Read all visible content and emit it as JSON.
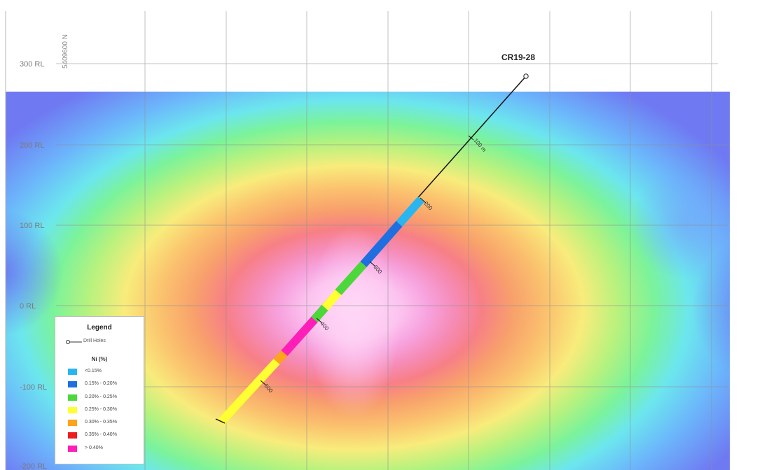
{
  "section": {
    "northing_label": "5409600 N",
    "rl_labels": [
      "300 RL",
      "200 RL",
      "100 RL",
      "0 RL",
      "-100 RL",
      "-200 RL"
    ]
  },
  "drillhole": {
    "name": "CR19-28",
    "depth_labels": [
      "100 m",
      "200",
      "300",
      "400",
      "500"
    ]
  },
  "legend": {
    "title": "Legend",
    "drill_holes_label": "Drill Holes",
    "grade_title": "Ni (%)",
    "classes": [
      {
        "label": "<0.15%",
        "color": "#29b6f0"
      },
      {
        "label": "0.15% - 0.20%",
        "color": "#1f6fe0"
      },
      {
        "label": "0.20% - 0.25%",
        "color": "#4cd83a"
      },
      {
        "label": "0.25% - 0.30%",
        "color": "#ffff33"
      },
      {
        "label": "0.30% - 0.35%",
        "color": "#ffa31a"
      },
      {
        "label": "0.35% - 0.40%",
        "color": "#ee1c1c"
      },
      {
        "label": "> 0.40%",
        "color": "#ff1fb8"
      }
    ]
  }
}
